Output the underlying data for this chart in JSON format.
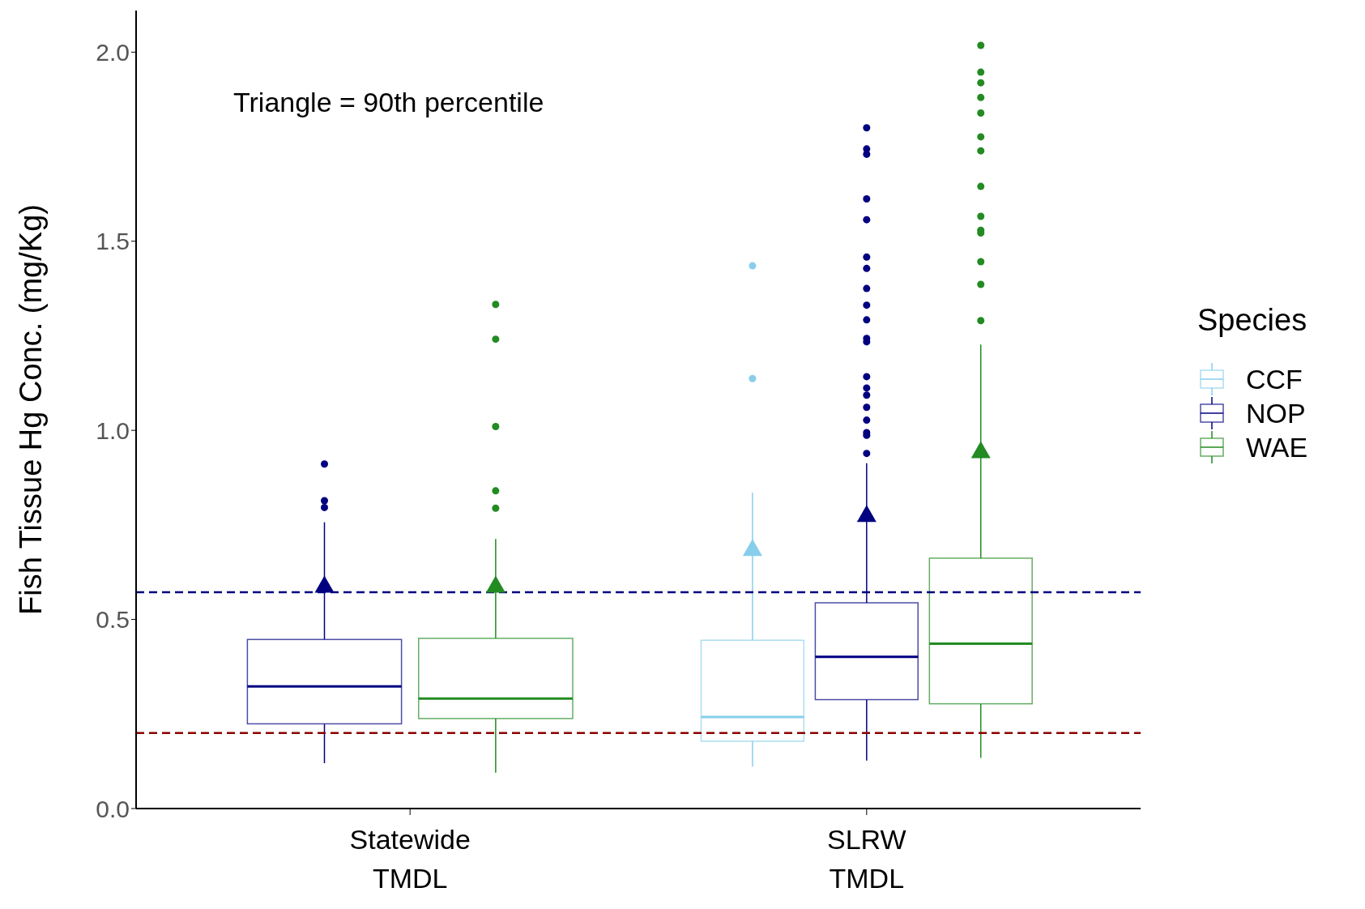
{
  "chart_data": {
    "type": "box",
    "categories": [
      "Statewide\nTMDL",
      "SLRW\nTMDL"
    ],
    "ylabel": "Fish Tissue Hg Conc. (mg/Kg)",
    "legend_title": "Species",
    "legend": "right",
    "ylim": [
      0,
      2.11
    ],
    "yticks": [
      {
        "value": 0,
        "label": "0.0"
      },
      {
        "value": 0.5,
        "label": "0.5"
      },
      {
        "value": 1,
        "label": "1.0"
      },
      {
        "value": 1.5,
        "label": "1.5"
      },
      {
        "value": 2,
        "label": "2.0"
      }
    ],
    "annotations": [
      "Triangle = 90th percentile"
    ],
    "ref_lines": [
      {
        "axis": "y",
        "value": 0.572,
        "color": "#000080",
        "line_style": "dashed"
      },
      {
        "axis": "y",
        "value": 0.2,
        "color": "#8b0000",
        "line_style": "dashed"
      }
    ],
    "series": [
      {
        "name": "CCF",
        "type": "box",
        "color": "#87ceeb",
        "boxes": [
          null,
          {
            "low": 0.111,
            "q1": 0.178,
            "median": 0.242,
            "q3": 0.445,
            "high": 0.835,
            "outliers": [
              1.435,
              1.137
            ]
          }
        ]
      },
      {
        "name": "NOP",
        "type": "box",
        "color": "#000080",
        "boxes": [
          {
            "low": 0.12,
            "q1": 0.224,
            "median": 0.323,
            "q3": 0.447,
            "high": 0.757,
            "outliers": [
              0.911,
              0.814,
              0.796
            ]
          },
          {
            "low": 0.127,
            "q1": 0.288,
            "median": 0.401,
            "q3": 0.544,
            "high": 0.913,
            "outliers": [
              1.8,
              1.744,
              1.73,
              1.612,
              1.557,
              1.458,
              1.428,
              1.375,
              1.331,
              1.292,
              1.243,
              1.234,
              1.142,
              1.112,
              1.093,
              1.061,
              1.027,
              0.994,
              0.987,
              0.939
            ]
          }
        ]
      },
      {
        "name": "WAE",
        "type": "box",
        "color": "#228b22",
        "boxes": [
          {
            "low": 0.095,
            "q1": 0.238,
            "median": 0.291,
            "q3": 0.45,
            "high": 0.713,
            "outliers": [
              1.333,
              1.241,
              1.01,
              0.84,
              0.794
            ]
          },
          {
            "low": 0.134,
            "q1": 0.277,
            "median": 0.436,
            "q3": 0.662,
            "high": 1.227,
            "outliers": [
              2.018,
              1.947,
              1.919,
              1.88,
              1.839,
              1.776,
              1.739,
              1.645,
              1.566,
              1.529,
              1.522,
              1.446,
              1.386,
              1.29
            ]
          }
        ]
      },
      {
        "type": "scatter",
        "marker": "triangle",
        "color": "#87ceeb",
        "x": [
          "SLRW\nTMDL"
        ],
        "values": [
          0.687
        ]
      },
      {
        "type": "scatter",
        "marker": "triangle",
        "color": "#000080",
        "x": [
          "Statewide\nTMDL",
          "SLRW\nTMDL"
        ],
        "values": [
          0.59,
          0.777
        ]
      },
      {
        "type": "scatter",
        "marker": "triangle",
        "color": "#228b22",
        "x": [
          "Statewide\nTMDL",
          "SLRW\nTMDL"
        ],
        "values": [
          0.59,
          0.946
        ]
      }
    ]
  }
}
